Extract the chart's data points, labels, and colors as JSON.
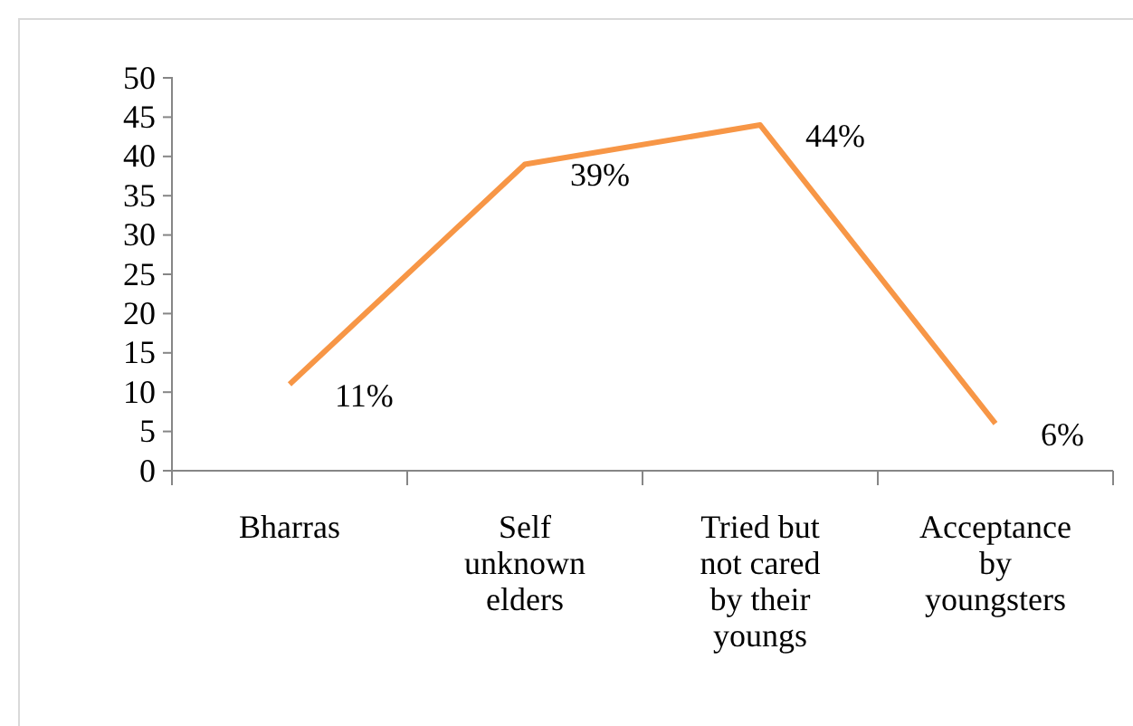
{
  "chart_data": {
    "type": "line",
    "categories": [
      "Bharras",
      "Self unknown elders",
      "Tried but not cared by their youngs",
      "Acceptance by youngsters"
    ],
    "series": [
      {
        "color": "#f79646",
        "values": [
          11,
          39,
          44,
          6
        ],
        "value_labels": [
          "11%",
          "39%",
          "44%",
          "6%"
        ]
      }
    ],
    "ylim": [
      0,
      50
    ],
    "yticks": [
      0,
      5,
      10,
      15,
      20,
      25,
      30,
      35,
      40,
      45,
      50
    ],
    "grid": false,
    "marker": "none",
    "line_style": "solid"
  }
}
